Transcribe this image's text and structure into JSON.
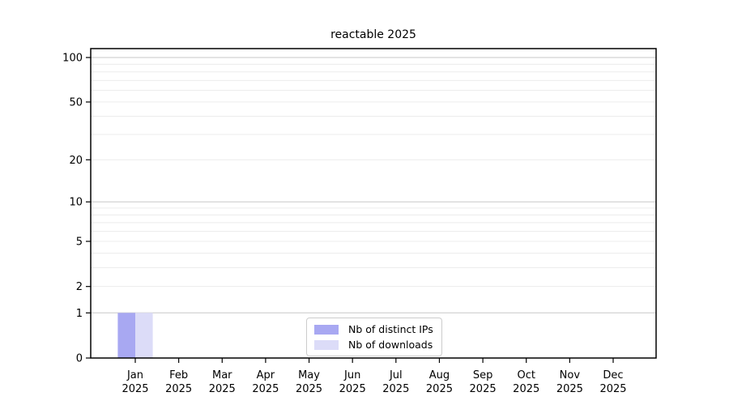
{
  "chart_data": {
    "type": "bar",
    "title": "reactable 2025",
    "categories": [
      "Jan",
      "Feb",
      "Mar",
      "Apr",
      "May",
      "Jun",
      "Jul",
      "Aug",
      "Sep",
      "Oct",
      "Nov",
      "Dec"
    ],
    "year_label": "2025",
    "series": [
      {
        "name": "Nb of distinct IPs",
        "color": "#a8a8f2",
        "values": [
          1,
          0,
          0,
          0,
          0,
          0,
          0,
          0,
          0,
          0,
          0,
          0
        ]
      },
      {
        "name": "Nb of downloads",
        "color": "#dcdcf8",
        "values": [
          1,
          0,
          0,
          0,
          0,
          0,
          0,
          0,
          0,
          0,
          0,
          0
        ]
      }
    ],
    "xlabel": "",
    "ylabel": "",
    "ylim": [
      0,
      100
    ],
    "yscale": "log1p",
    "yticks": [
      0,
      1,
      2,
      5,
      10,
      20,
      50,
      100
    ],
    "major_grid_values": [
      1,
      10,
      100
    ],
    "minor_grid_values": [
      2,
      3,
      4,
      5,
      6,
      7,
      8,
      9,
      20,
      30,
      40,
      50,
      60,
      70,
      80,
      90
    ],
    "grid": "horizontal",
    "legend_position": "lower center"
  },
  "colors": {
    "background": "#ffffff",
    "text": "#000000",
    "axis": "#000000",
    "major_grid": "#d2d2d2",
    "minor_grid": "#ececec",
    "legend_border": "#cccccc"
  }
}
